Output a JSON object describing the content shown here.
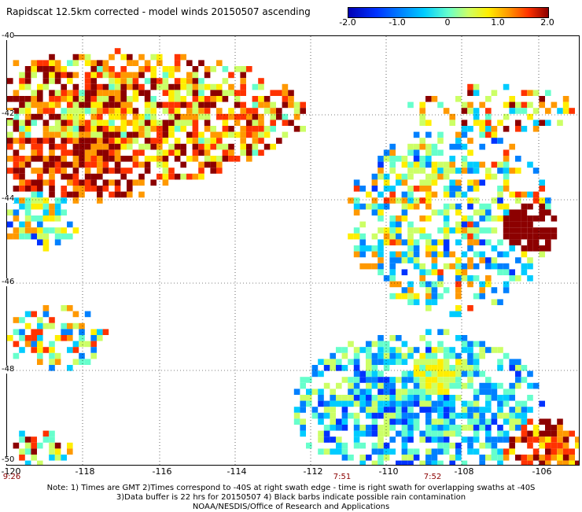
{
  "title": "Rapidscat 12.5km corrected - model winds 20150507 ascending",
  "colorbar": {
    "ticks": [
      "-2.0",
      "-1.0",
      "0",
      "1.0",
      "2.0"
    ],
    "range": [
      -2.0,
      2.0
    ],
    "colors": [
      "#0000b4",
      "#0033ff",
      "#0080ff",
      "#00ccff",
      "#66ffcc",
      "#ccff66",
      "#ffee00",
      "#ff9900",
      "#ff3300",
      "#8c0000"
    ]
  },
  "axes": {
    "lat_labels": [
      "-40",
      "-42",
      "-44",
      "-46",
      "-48",
      "-50"
    ],
    "lon_labels": [
      "-120",
      "-118",
      "-116",
      "-114",
      "-112",
      "-110",
      "-108",
      "-106"
    ],
    "lon_range": [
      -120,
      -105.2
    ],
    "lat_range": [
      -40,
      -50
    ],
    "grid": "dotted"
  },
  "time_labels": [
    "9:26",
    "7:51",
    "7:52"
  ],
  "notes": [
    "Note: 1) Times are GMT 2)Times correspond to -40S at right swath edge - time is right swath for overlapping swaths at -40S",
    "3)Data buffer is 22 hrs for 20150507 4) Black barbs indicate possible rain contamination",
    "NOAA/NESDIS/Office of Research and Applications"
  ]
}
